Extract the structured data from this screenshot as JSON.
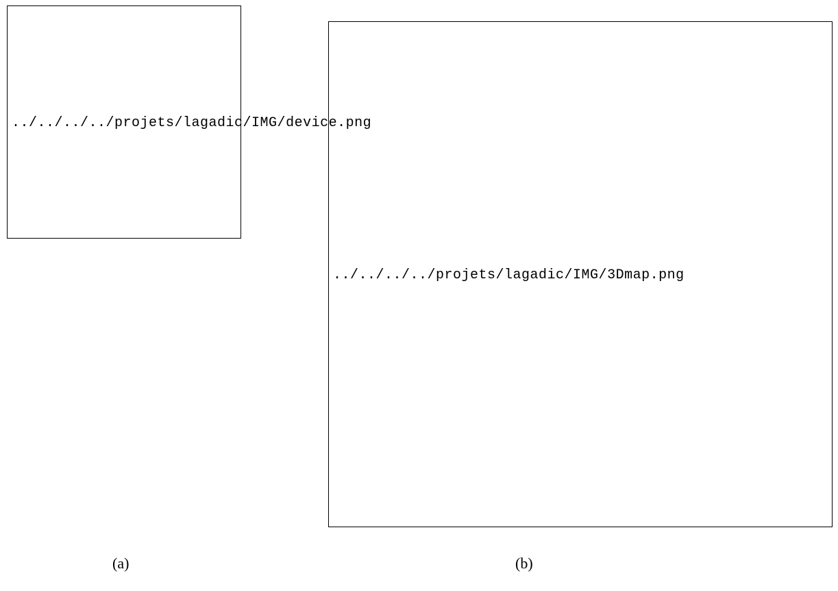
{
  "figure": {
    "panel_a": {
      "image_path": "../../../../projets/lagadic/IMG/device.png",
      "caption": "(a)"
    },
    "panel_b": {
      "image_path": "../../../../projets/lagadic/IMG/3Dmap.png",
      "caption": "(b)"
    }
  }
}
